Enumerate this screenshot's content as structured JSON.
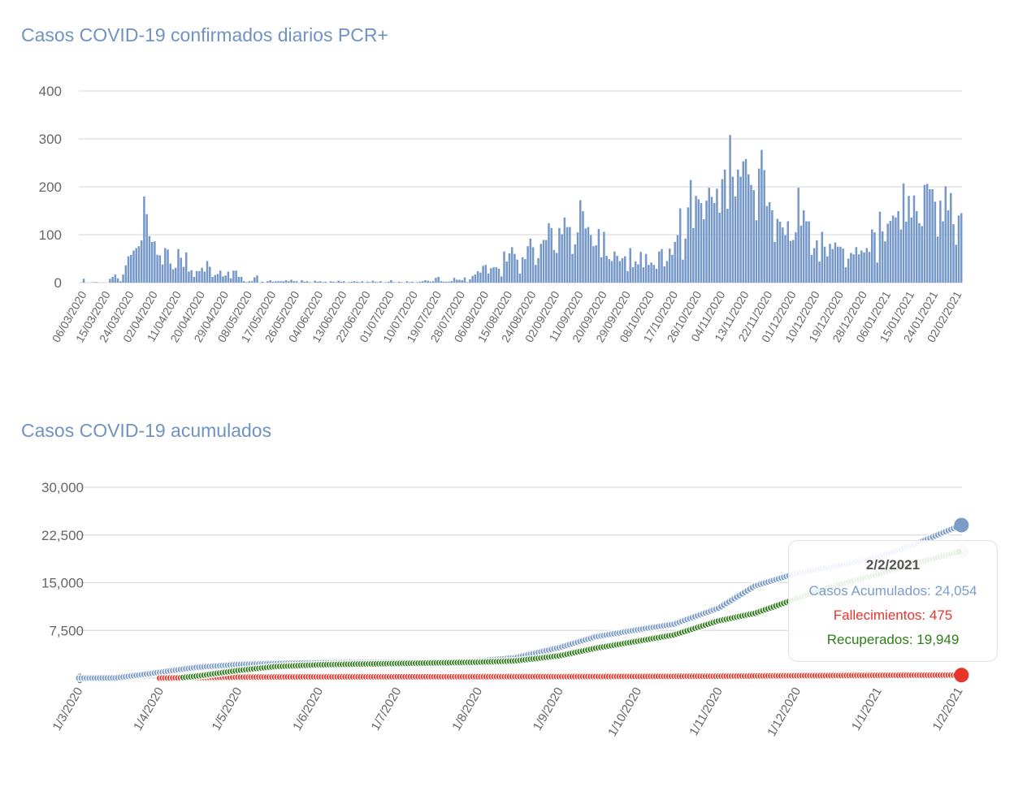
{
  "charts_titles": {
    "daily": "Casos COVID-19 confirmados diarios PCR+",
    "cumulative": "Casos COVID-19 acumulados"
  },
  "colors": {
    "title": "#6f93c3",
    "bars": "#7598c9",
    "cases": "#7b9cc9",
    "deaths": "#e8352a",
    "recovered": "#2e7d1a",
    "grid": "#dddddd",
    "axis_text": "#666666"
  },
  "chart_data": [
    {
      "type": "bar",
      "title": "Casos COVID-19 confirmados diarios PCR+",
      "start_date": "06/03/2020",
      "ylim": [
        0,
        400
      ],
      "yticks": [
        "0",
        "100",
        "200",
        "300",
        "400"
      ],
      "grid": true,
      "xtick_labels": [
        "06/03/2020",
        "15/03/2020",
        "24/03/2020",
        "02/04/2020",
        "11/04/2020",
        "20/04/2020",
        "29/04/2020",
        "08/05/2020",
        "17/05/2020",
        "26/05/2020",
        "04/06/2020",
        "13/06/2020",
        "22/06/2020",
        "01/07/2020",
        "10/07/2020",
        "19/07/2020",
        "28/07/2020",
        "06/08/2020",
        "15/08/2020",
        "24/08/2020",
        "02/09/2020",
        "11/09/2020",
        "20/09/2020",
        "29/09/2020",
        "08/10/2020",
        "17/10/2020",
        "26/10/2020",
        "04/11/2020",
        "13/11/2020",
        "22/11/2020",
        "01/12/2020",
        "10/12/2020",
        "19/12/2020",
        "28/12/2020",
        "06/01/2021",
        "15/01/2021",
        "24/01/2021",
        "02/02/2021"
      ],
      "values": [
        8,
        0,
        0,
        0,
        1,
        1,
        0,
        0,
        0,
        0,
        8,
        12,
        17,
        9,
        3,
        17,
        36,
        55,
        58,
        67,
        72,
        76,
        88,
        180,
        143,
        97,
        85,
        86,
        58,
        57,
        38,
        72,
        69,
        40,
        28,
        31,
        70,
        52,
        33,
        63,
        23,
        26,
        12,
        24,
        24,
        31,
        23,
        45,
        33,
        12,
        16,
        18,
        25,
        13,
        15,
        23,
        9,
        25,
        25,
        12,
        12,
        3,
        1,
        3,
        3,
        11,
        15,
        0,
        2,
        0,
        3,
        5,
        2,
        3,
        3,
        3,
        3,
        5,
        3,
        6,
        3,
        3,
        0,
        5,
        2,
        3,
        1,
        0,
        4,
        2,
        3,
        1,
        2,
        0,
        3,
        2,
        1,
        4,
        2,
        3,
        0,
        1,
        2,
        3,
        2,
        1,
        3,
        0,
        2,
        1,
        4,
        2,
        1,
        3,
        0,
        1,
        2,
        5,
        1,
        0,
        2,
        1,
        0,
        3,
        1,
        2,
        0,
        1,
        2,
        3,
        5,
        4,
        2,
        3,
        10,
        12,
        3,
        2,
        2,
        2,
        3,
        10,
        6,
        6,
        5,
        11,
        1,
        7,
        14,
        17,
        24,
        21,
        35,
        37,
        19,
        30,
        32,
        32,
        29,
        13,
        65,
        44,
        61,
        74,
        60,
        48,
        19,
        53,
        49,
        76,
        92,
        74,
        37,
        51,
        81,
        89,
        89,
        124,
        114,
        68,
        62,
        114,
        101,
        136,
        116,
        116,
        60,
        80,
        105,
        172,
        149,
        113,
        116,
        99,
        76,
        78,
        112,
        53,
        106,
        56,
        49,
        45,
        65,
        56,
        45,
        51,
        55,
        24,
        72,
        32,
        44,
        38,
        64,
        32,
        60,
        37,
        42,
        37,
        29,
        65,
        70,
        34,
        45,
        71,
        58,
        85,
        99,
        155,
        48,
        92,
        157,
        214,
        114,
        181,
        174,
        166,
        132,
        171,
        198,
        179,
        166,
        196,
        146,
        216,
        236,
        154,
        308,
        221,
        180,
        236,
        221,
        253,
        258,
        226,
        204,
        193,
        130,
        238,
        277,
        235,
        160,
        168,
        151,
        85,
        133,
        127,
        115,
        99,
        128,
        87,
        89,
        105,
        198,
        119,
        151,
        128,
        128,
        58,
        72,
        88,
        44,
        106,
        75,
        55,
        81,
        70,
        84,
        75,
        75,
        71,
        32,
        50,
        62,
        59,
        74,
        59,
        67,
        63,
        72,
        64,
        111,
        105,
        42,
        148,
        107,
        86,
        123,
        129,
        140,
        136,
        149,
        111,
        207,
        127,
        181,
        136,
        182,
        149,
        124,
        118,
        204,
        206,
        195,
        195,
        169,
        96,
        171,
        128,
        201,
        151,
        187,
        122,
        79,
        140,
        145
      ]
    },
    {
      "type": "line",
      "title": "Casos COVID-19 acumulados",
      "ylim": [
        0,
        30000
      ],
      "yticks": [
        "0",
        "7,500",
        "15,000",
        "22,500",
        "30,000"
      ],
      "grid": true,
      "xtick_labels": [
        "1/3/2020",
        "1/4/2020",
        "1/5/2020",
        "1/6/2020",
        "1/7/2020",
        "1/8/2020",
        "1/9/2020",
        "1/10/2020",
        "1/11/2020",
        "1/12/2020",
        "1/1/2021",
        "1/2/2021"
      ],
      "series": [
        {
          "name": "Casos Acumulados",
          "color": "#7b9cc9",
          "points": [
            [
              "1/3/2020",
              0
            ],
            [
              "15/3/2020",
              20
            ],
            [
              "1/4/2020",
              900
            ],
            [
              "15/4/2020",
              1700
            ],
            [
              "1/5/2020",
              2150
            ],
            [
              "15/5/2020",
              2300
            ],
            [
              "1/6/2020",
              2400
            ],
            [
              "1/7/2020",
              2500
            ],
            [
              "15/7/2020",
              2550
            ],
            [
              "1/8/2020",
              2700
            ],
            [
              "15/8/2020",
              3200
            ],
            [
              "1/9/2020",
              4800
            ],
            [
              "15/9/2020",
              6500
            ],
            [
              "1/10/2020",
              7600
            ],
            [
              "15/10/2020",
              8500
            ],
            [
              "1/11/2020",
              11000
            ],
            [
              "15/11/2020",
              14500
            ],
            [
              "1/12/2020",
              16500
            ],
            [
              "15/12/2020",
              17500
            ],
            [
              "1/1/2021",
              19000
            ],
            [
              "15/1/2021",
              21000
            ],
            [
              "2/2/2021",
              24054
            ]
          ]
        },
        {
          "name": "Fallecimientos",
          "color": "#e8352a",
          "points": [
            [
              "1/4/2020",
              10
            ],
            [
              "1/5/2020",
              150
            ],
            [
              "1/6/2020",
              200
            ],
            [
              "1/9/2020",
              230
            ],
            [
              "1/11/2020",
              300
            ],
            [
              "1/12/2020",
              380
            ],
            [
              "1/1/2021",
              430
            ],
            [
              "2/2/2021",
              475
            ]
          ]
        },
        {
          "name": "Recuperados",
          "color": "#2e7d1a",
          "points": [
            [
              "10/4/2020",
              100
            ],
            [
              "15/4/2020",
              300
            ],
            [
              "1/5/2020",
              1200
            ],
            [
              "15/5/2020",
              1800
            ],
            [
              "1/6/2020",
              2100
            ],
            [
              "1/7/2020",
              2300
            ],
            [
              "1/8/2020",
              2500
            ],
            [
              "15/8/2020",
              2700
            ],
            [
              "1/9/2020",
              3500
            ],
            [
              "15/9/2020",
              4700
            ],
            [
              "1/10/2020",
              5800
            ],
            [
              "15/10/2020",
              6800
            ],
            [
              "1/11/2020",
              9000
            ],
            [
              "15/11/2020",
              10200
            ],
            [
              "1/12/2020",
              12500
            ],
            [
              "15/12/2020",
              14500
            ],
            [
              "1/1/2021",
              16300
            ],
            [
              "15/1/2021",
              18000
            ],
            [
              "2/2/2021",
              19949
            ]
          ]
        }
      ],
      "tooltip": {
        "date": "2/2/2021",
        "cases": "Casos Acumulados: 24,054",
        "deaths": "Fallecimientos: 475",
        "recovered": "Recuperados: 19,949"
      }
    }
  ]
}
